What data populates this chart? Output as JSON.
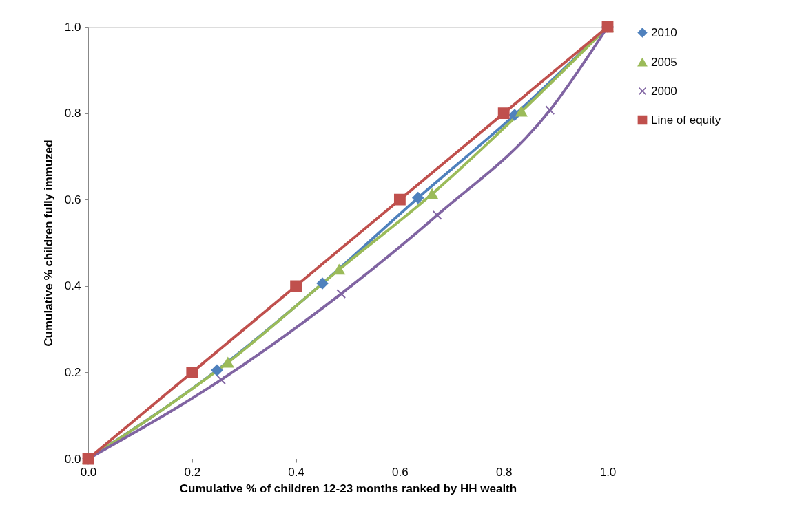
{
  "chart_data": {
    "type": "line",
    "xlabel": "Cumulative % of children 12-23 months ranked by HH wealth",
    "ylabel": "Cumulative % children fully immuzed",
    "xlim": [
      0,
      1
    ],
    "ylim": [
      0,
      1
    ],
    "xticks": [
      {
        "value": 0,
        "label": "0.0"
      },
      {
        "value": 0.2,
        "label": "0.2"
      },
      {
        "value": 0.4,
        "label": "0.4"
      },
      {
        "value": 0.6,
        "label": "0.6"
      },
      {
        "value": 0.8,
        "label": "0.8"
      },
      {
        "value": 1,
        "label": "1.0"
      }
    ],
    "yticks": [
      {
        "value": 0,
        "label": "0.0"
      },
      {
        "value": 0.2,
        "label": "0.2"
      },
      {
        "value": 0.4,
        "label": "0.4"
      },
      {
        "value": 0.6,
        "label": "0.6"
      },
      {
        "value": 0.8,
        "label": "0.8"
      },
      {
        "value": 1,
        "label": "1.0"
      }
    ],
    "grid": false,
    "legend": "right",
    "series": [
      {
        "name": "2010",
        "color": "#4f81bd",
        "marker": "diamond",
        "x": [
          0,
          0.248,
          0.451,
          0.635,
          0.821,
          1
        ],
        "values": [
          0,
          0.205,
          0.406,
          0.604,
          0.796,
          1
        ]
      },
      {
        "name": "2005",
        "color": "#9bbb59",
        "marker": "triangle",
        "x": [
          0,
          0.269,
          0.483,
          0.662,
          0.834,
          1
        ],
        "values": [
          0,
          0.223,
          0.438,
          0.613,
          0.804,
          1
        ]
      },
      {
        "name": "2000",
        "color": "#8064a2",
        "marker": "cross",
        "x": [
          0,
          0.256,
          0.487,
          0.672,
          0.889,
          1
        ],
        "values": [
          0,
          0.183,
          0.382,
          0.564,
          0.807,
          1
        ]
      },
      {
        "name": "Line of equity",
        "color": "#c0504d",
        "marker": "square",
        "x": [
          0,
          0.2,
          0.4,
          0.6,
          0.8,
          1
        ],
        "values": [
          0,
          0.2,
          0.4,
          0.6,
          0.8,
          1
        ]
      }
    ]
  }
}
